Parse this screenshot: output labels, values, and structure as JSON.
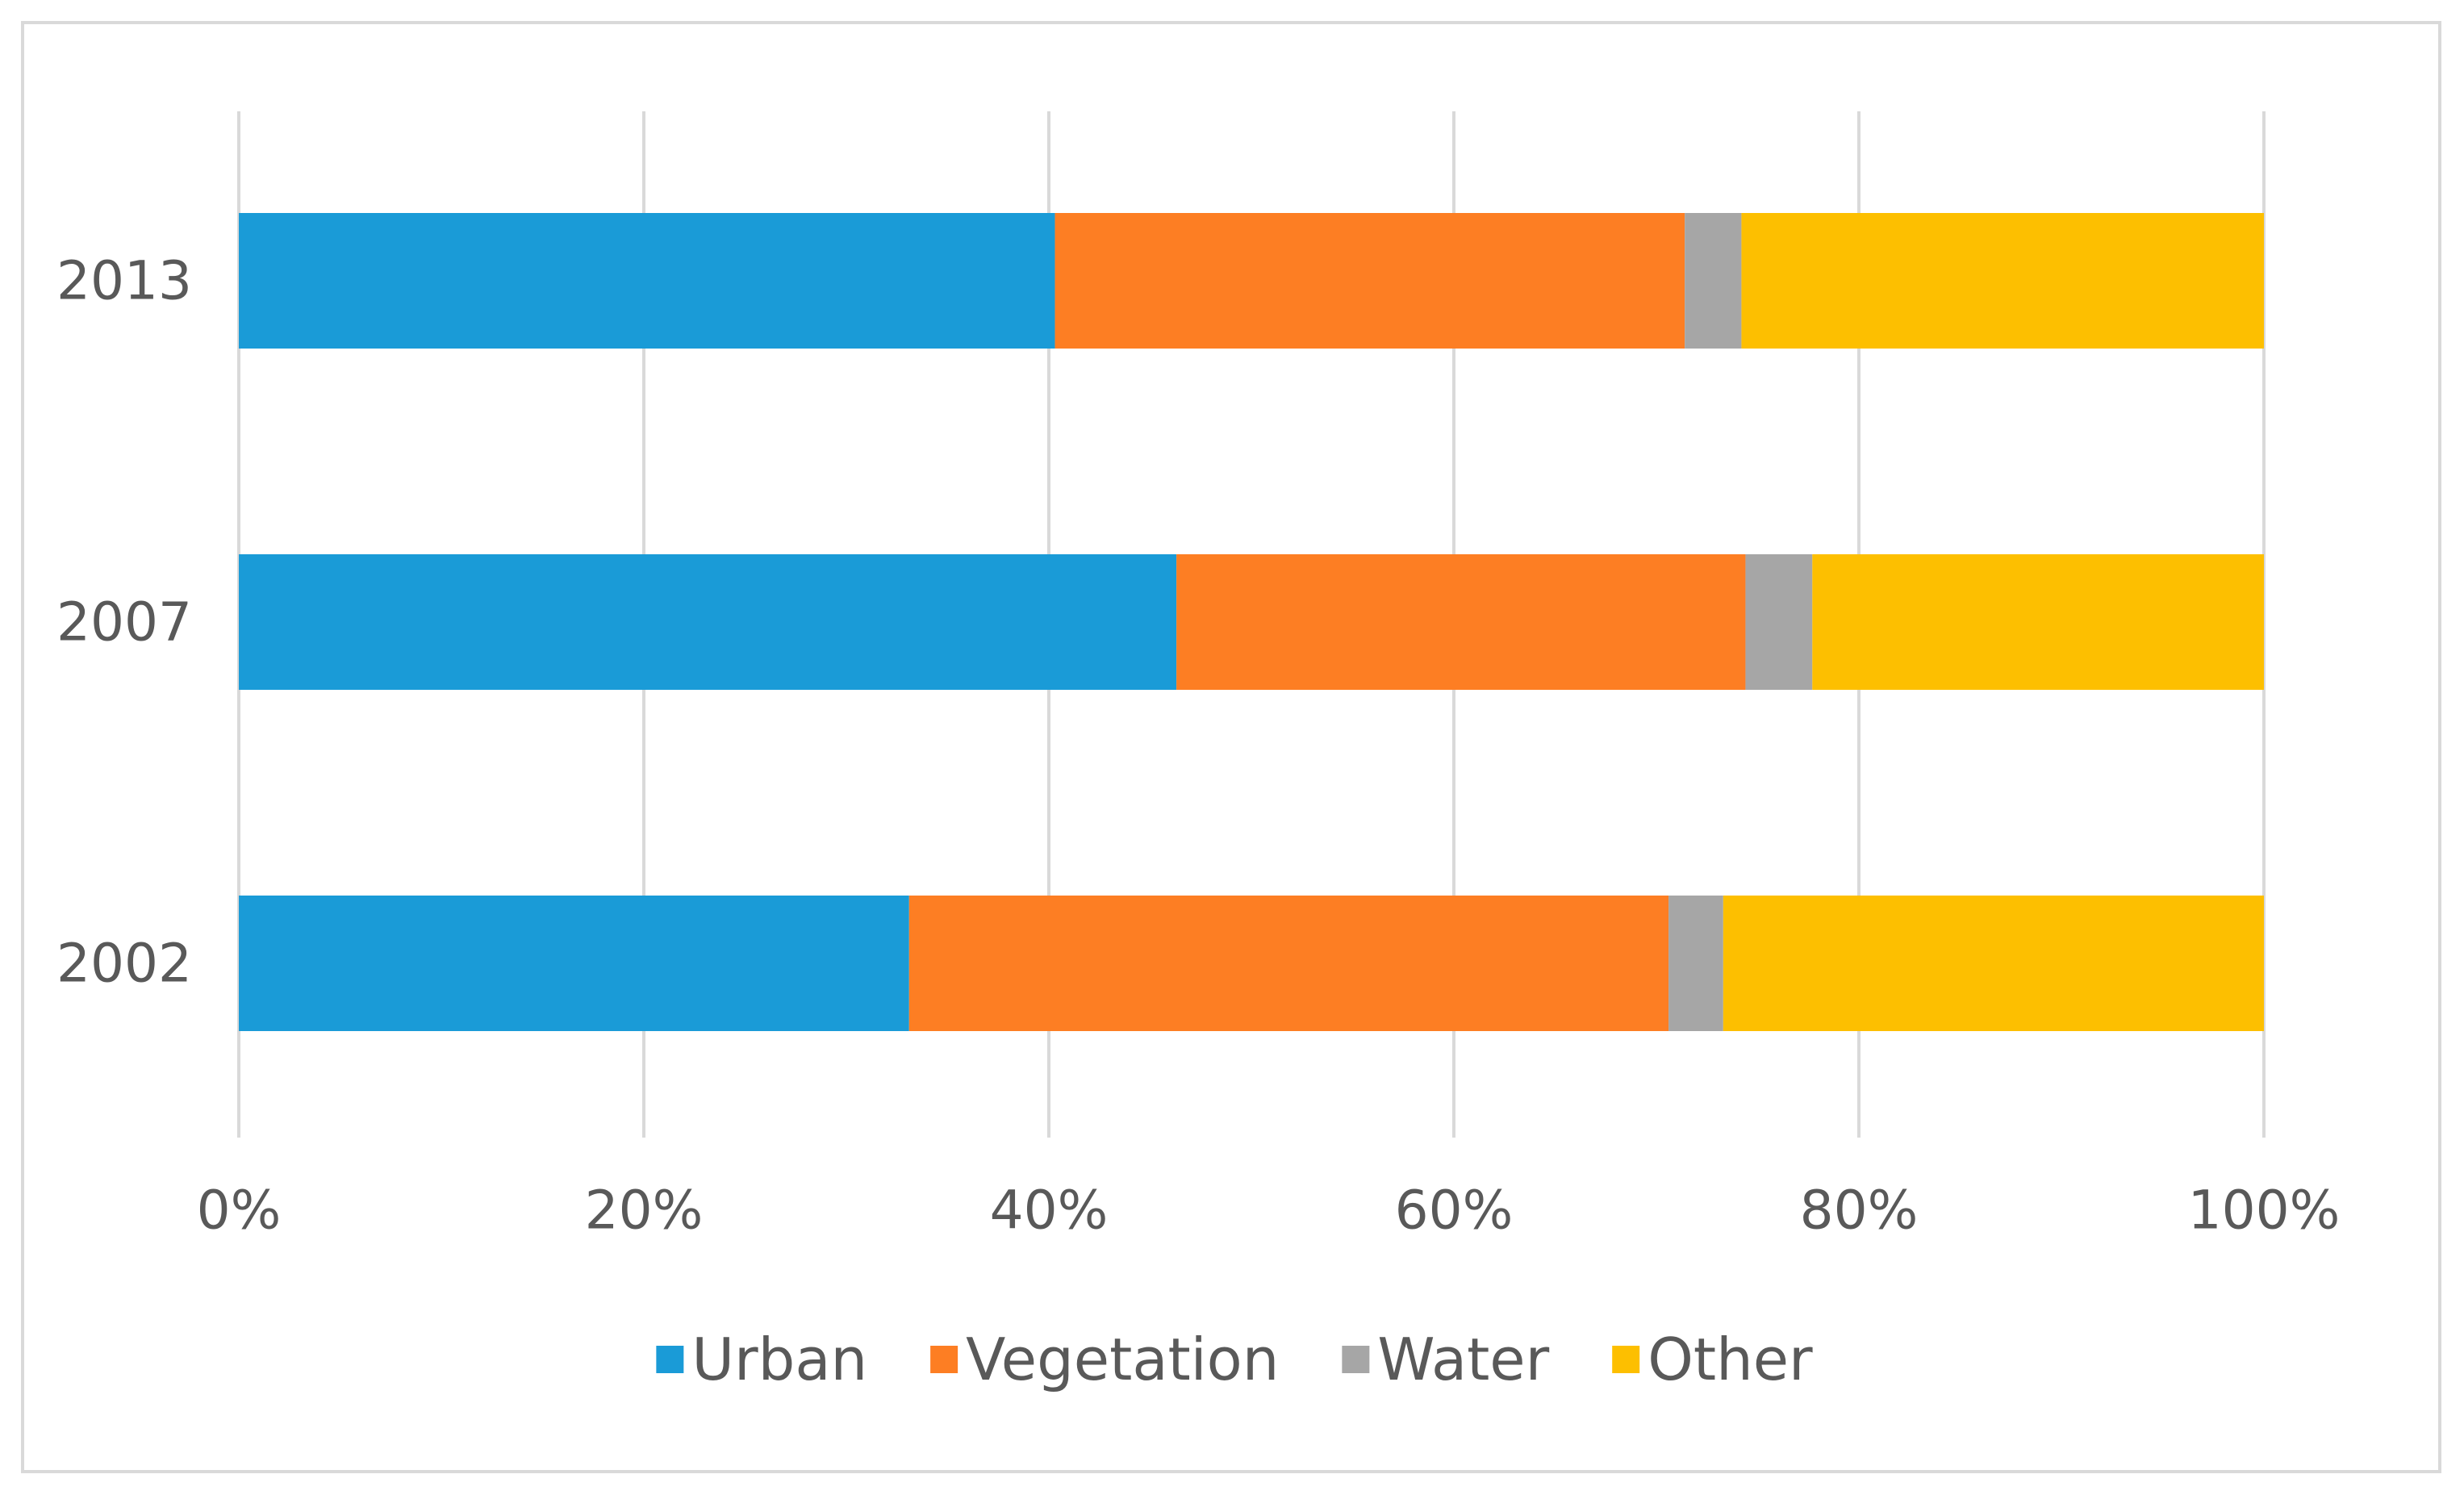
{
  "chart_data": {
    "type": "bar",
    "orientation": "horizontal",
    "stacked": "percent",
    "categories": [
      "2013",
      "2007",
      "2002"
    ],
    "series": [
      {
        "name": "Urban",
        "color": "#1a9bd7",
        "values": [
          40.3,
          46.3,
          33.1
        ]
      },
      {
        "name": "Vegetation",
        "color": "#fd7e23",
        "values": [
          31.1,
          28.1,
          37.5
        ]
      },
      {
        "name": "Water",
        "color": "#a6a6a6",
        "values": [
          2.8,
          3.3,
          2.7
        ]
      },
      {
        "name": "Other",
        "color": "#fdbf00",
        "values": [
          25.8,
          22.3,
          26.7
        ]
      }
    ],
    "xticks": [
      "0%",
      "20%",
      "40%",
      "60%",
      "80%",
      "100%"
    ],
    "xlim": [
      0,
      100
    ],
    "title": "",
    "xlabel": "",
    "ylabel": "",
    "grid": true,
    "legend": "bottom"
  }
}
